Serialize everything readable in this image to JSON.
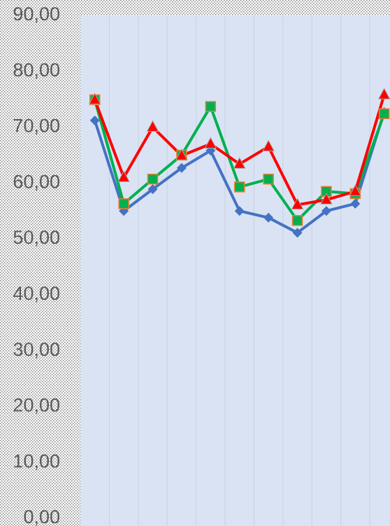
{
  "chart_data": {
    "type": "line",
    "categories": [
      null,
      null,
      null,
      null,
      null,
      null,
      null,
      null,
      null,
      null,
      null
    ],
    "series": [
      {
        "color": "#4472c4",
        "marker": "diamond",
        "values": [
          71.2,
          55.0,
          58.9,
          62.7,
          65.8,
          55.0,
          53.8,
          51.1,
          55.0,
          56.3,
          72.7
        ]
      },
      {
        "color": "#00b050",
        "marker": "square",
        "values": [
          74.9,
          56.3,
          60.7,
          65.0,
          73.7,
          59.3,
          60.7,
          53.3,
          58.5,
          58.1,
          72.4
        ]
      },
      {
        "color": "#ff0000",
        "marker": "triangle",
        "values": [
          74.9,
          61.0,
          70.0,
          64.9,
          67.0,
          63.4,
          66.5,
          56.1,
          57.0,
          58.5,
          75.8
        ]
      }
    ],
    "ylim": [
      0,
      90
    ],
    "yticks": [
      {
        "value": 0,
        "label": "0,00"
      },
      {
        "value": 10,
        "label": "10,00"
      },
      {
        "value": 20,
        "label": "20,00"
      },
      {
        "value": 30,
        "label": "30,00"
      },
      {
        "value": 40,
        "label": "40,00"
      },
      {
        "value": 50,
        "label": "50,00"
      },
      {
        "value": 60,
        "label": "60,00"
      },
      {
        "value": 70,
        "label": "70,00"
      },
      {
        "value": 80,
        "label": "80,00"
      },
      {
        "value": 90,
        "label": "90,00"
      }
    ],
    "grid": true
  }
}
